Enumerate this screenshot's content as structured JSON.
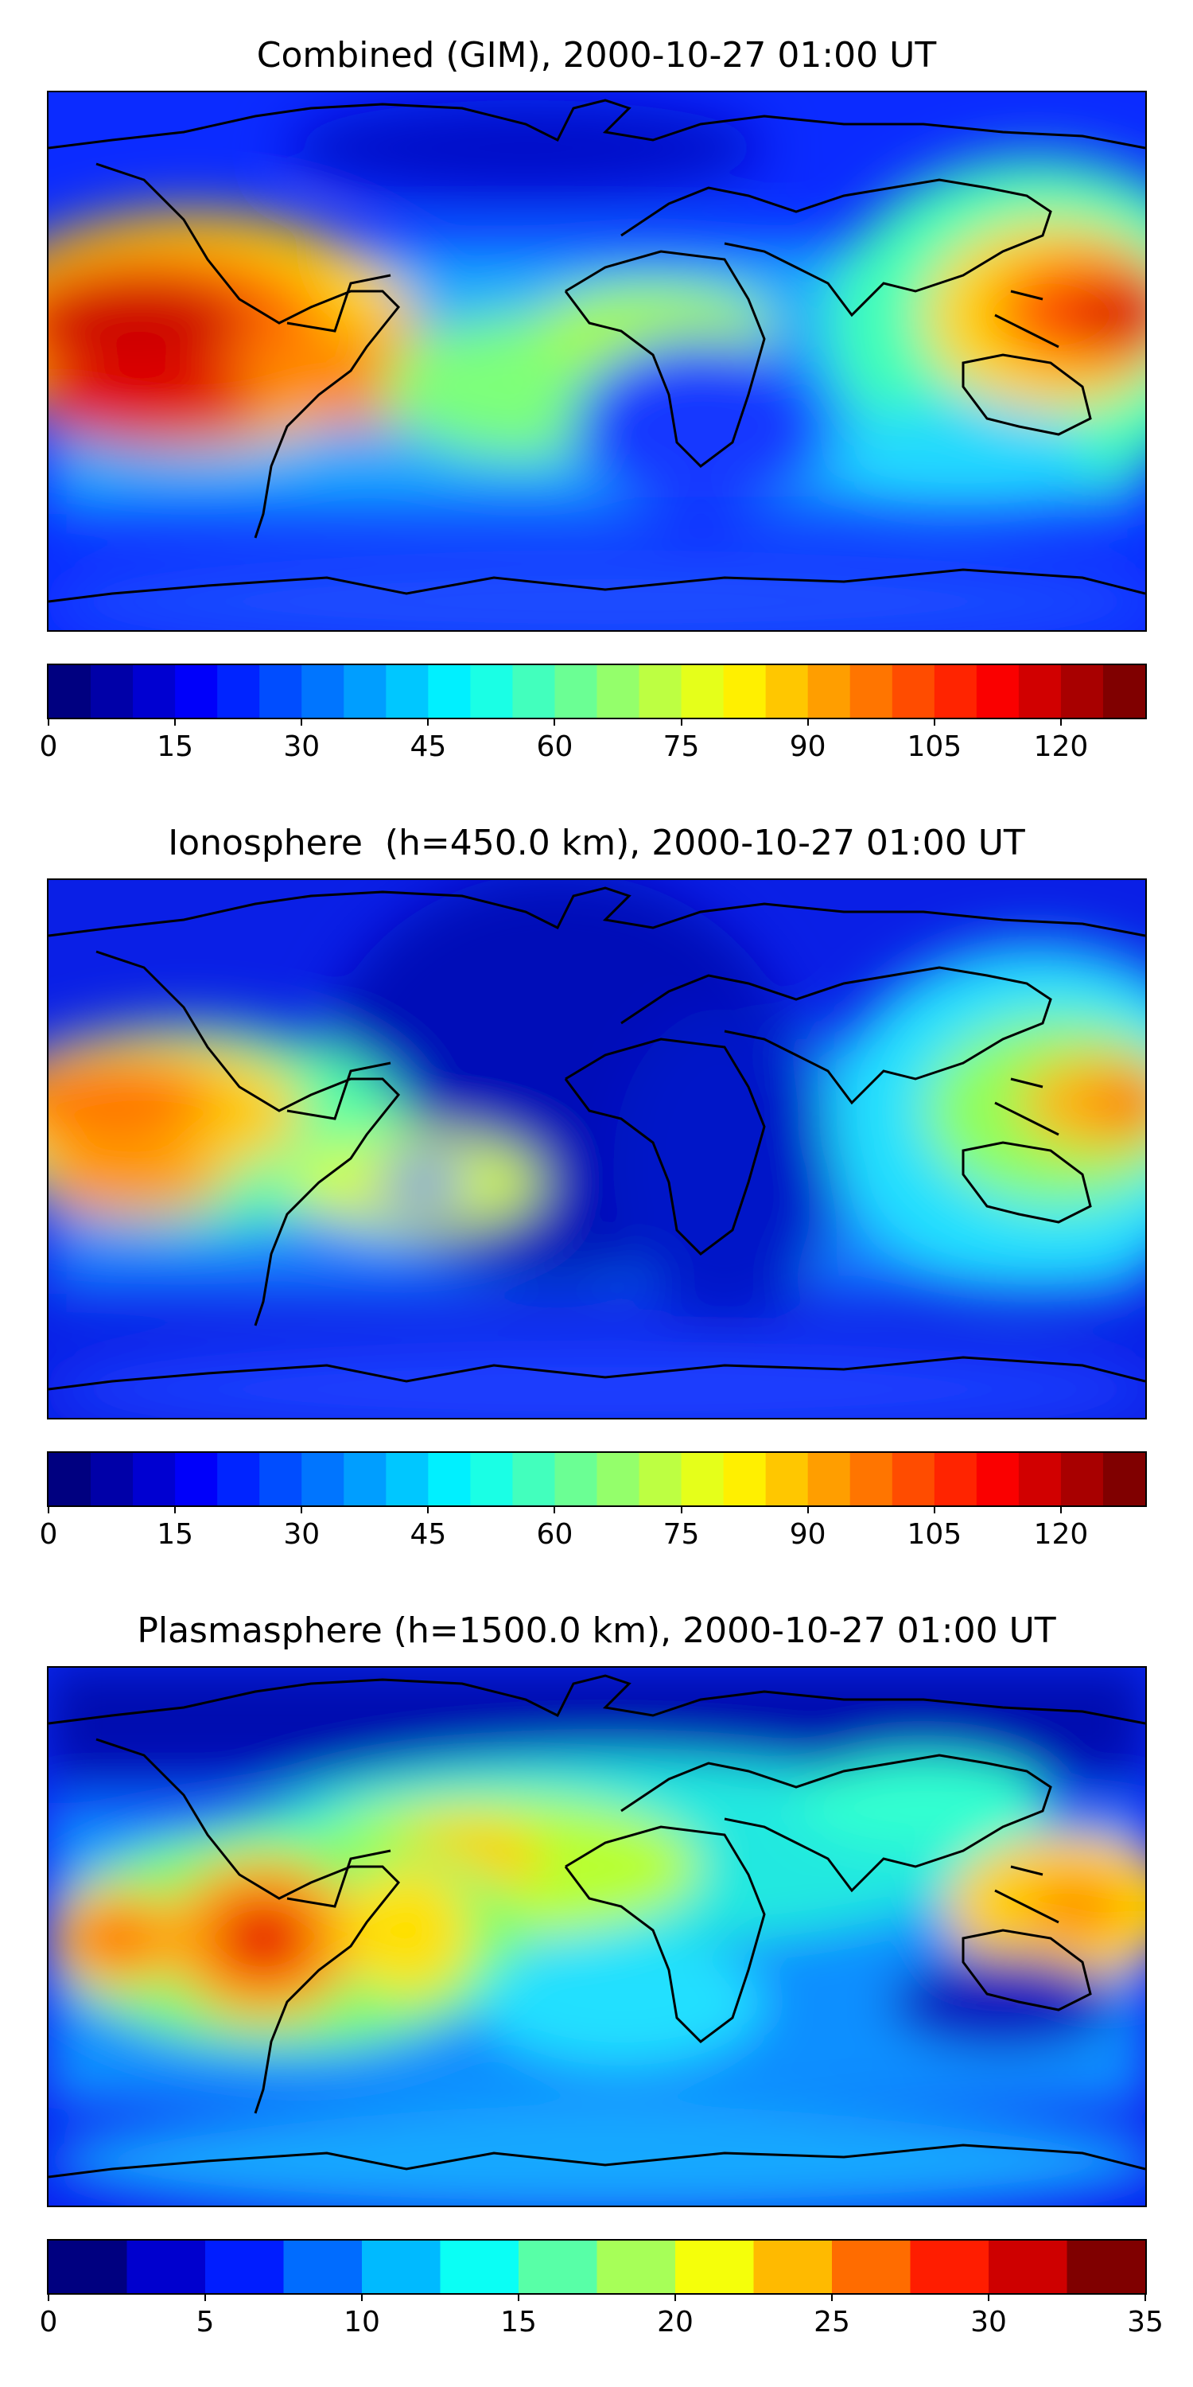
{
  "panels": [
    {
      "title": "Combined (GIM), 2000-10-27 01:00 UT",
      "colorbar": {
        "min": 0,
        "max": 130,
        "levels": 26,
        "ticks": [
          0,
          15,
          30,
          45,
          60,
          75,
          90,
          105,
          120
        ]
      }
    },
    {
      "title": "Ionosphere  (h=450.0 km), 2000-10-27 01:00 UT",
      "colorbar": {
        "min": 0,
        "max": 130,
        "levels": 26,
        "ticks": [
          0,
          15,
          30,
          45,
          60,
          75,
          90,
          105,
          120
        ]
      }
    },
    {
      "title": "Plasmasphere (h=1500.0 km), 2000-10-27 01:00 UT",
      "colorbar": {
        "min": 0,
        "max": 35,
        "levels": 14,
        "ticks": [
          0,
          5,
          10,
          15,
          20,
          25,
          30,
          35
        ]
      }
    }
  ],
  "colormap": "jet",
  "map_features": [
    "coastlines"
  ]
}
